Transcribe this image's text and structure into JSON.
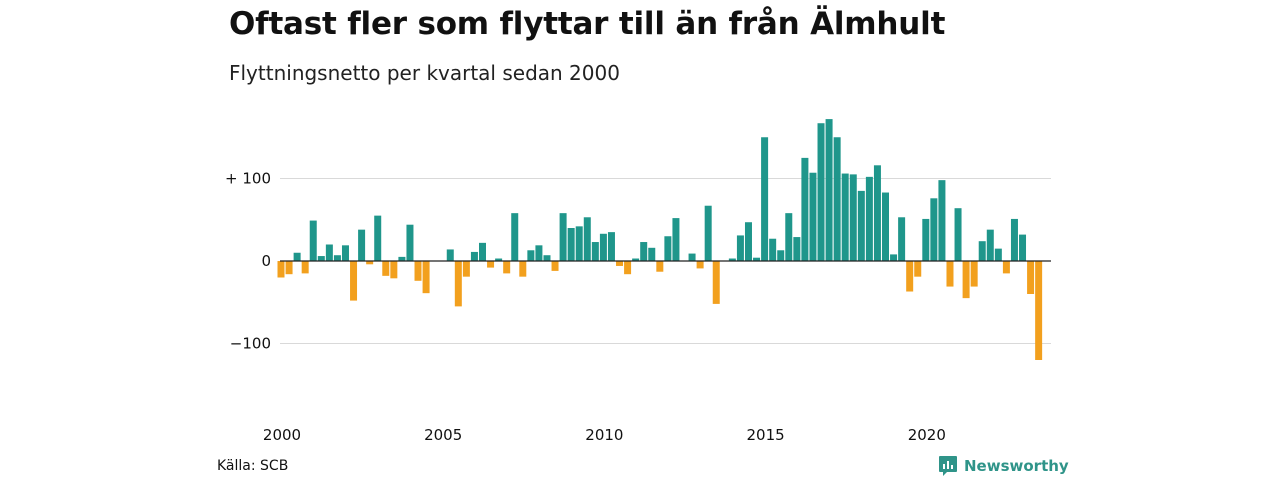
{
  "title": "Oftast fler som flyttar till än från Älmhult",
  "subtitle": "Flyttningsnetto per kvartal sedan 2000",
  "source": "Källa: SCB",
  "brand": {
    "name": "Newsworthy",
    "icon": "newsworthy-logo-icon"
  },
  "colors": {
    "positive": "#1f968b",
    "negative": "#f2a01e",
    "grid": "#d9d9d9",
    "axis": "#222222",
    "brand": "#2f9489"
  },
  "chart_data": {
    "type": "bar",
    "title": "Oftast fler som flyttar till än från Älmhult",
    "subtitle": "Flyttningsnetto per kvartal sedan 2000",
    "xlabel": "",
    "ylabel": "",
    "x_tick_labels": [
      "2000",
      "2005",
      "2010",
      "2015",
      "2020"
    ],
    "y_ticks": [
      {
        "value": 100,
        "label": "+ 100"
      },
      {
        "value": 0,
        "label": "0"
      },
      {
        "value": -100,
        "label": "−100"
      }
    ],
    "ylim": [
      -150,
      180
    ],
    "grid": true,
    "legend": "none",
    "series": [
      {
        "name": "",
        "categories": [
          "2000 K1",
          "2000 K2",
          "2000 K3",
          "2000 K4",
          "2001 K1",
          "2001 K2",
          "2001 K3",
          "2001 K4",
          "2002 K1",
          "2002 K2",
          "2002 K3",
          "2002 K4",
          "2003 K1",
          "2003 K2",
          "2003 K3",
          "2003 K4",
          "2004 K1",
          "2004 K2",
          "2004 K3",
          "2004 K4",
          "2005 K1",
          "2005 K2",
          "2005 K3",
          "2005 K4",
          "2006 K1",
          "2006 K2",
          "2006 K3",
          "2006 K4",
          "2007 K1",
          "2007 K2",
          "2007 K3",
          "2007 K4",
          "2008 K1",
          "2008 K2",
          "2008 K3",
          "2008 K4",
          "2009 K1",
          "2009 K2",
          "2009 K3",
          "2009 K4",
          "2010 K1",
          "2010 K2",
          "2010 K3",
          "2010 K4",
          "2011 K1",
          "2011 K2",
          "2011 K3",
          "2011 K4",
          "2012 K1",
          "2012 K2",
          "2012 K3",
          "2012 K4",
          "2013 K1",
          "2013 K2",
          "2013 K3",
          "2013 K4",
          "2014 K1",
          "2014 K2",
          "2014 K3",
          "2014 K4",
          "2015 K1",
          "2015 K2",
          "2015 K3",
          "2015 K4",
          "2016 K1",
          "2016 K2",
          "2016 K3",
          "2016 K4",
          "2017 K1",
          "2017 K2",
          "2017 K3",
          "2017 K4",
          "2018 K1",
          "2018 K2",
          "2018 K3",
          "2018 K4",
          "2019 K1",
          "2019 K2",
          "2019 K3",
          "2019 K4",
          "2020 K1",
          "2020 K2",
          "2020 K3",
          "2020 K4",
          "2021 K1",
          "2021 K2",
          "2021 K3",
          "2021 K4",
          "2022 K1",
          "2022 K2",
          "2022 K3",
          "2022 K4",
          "2023 K1",
          "2023 K2",
          "2023 K3",
          "2023 K4"
        ],
        "values": [
          -20,
          -16,
          10,
          -15,
          49,
          6,
          20,
          7,
          19,
          -48,
          38,
          -4,
          55,
          -18,
          -21,
          5,
          44,
          -24,
          -39,
          0,
          0,
          14,
          -55,
          -19,
          11,
          22,
          -8,
          3,
          -15,
          58,
          -19,
          13,
          19,
          7,
          -12,
          58,
          40,
          42,
          53,
          23,
          33,
          35,
          -6,
          -16,
          3,
          23,
          16,
          -13,
          30,
          52,
          0,
          9,
          -9,
          67,
          -52,
          0,
          3,
          31,
          47,
          4,
          150,
          27,
          13,
          58,
          29,
          125,
          107,
          167,
          172,
          150,
          106,
          105,
          85,
          102,
          116,
          83,
          8,
          53,
          -37,
          -19,
          51,
          76,
          98,
          -31,
          64,
          -45,
          -31,
          24,
          38,
          15,
          -15,
          51,
          32,
          -40,
          -120,
          0
        ]
      }
    ]
  }
}
